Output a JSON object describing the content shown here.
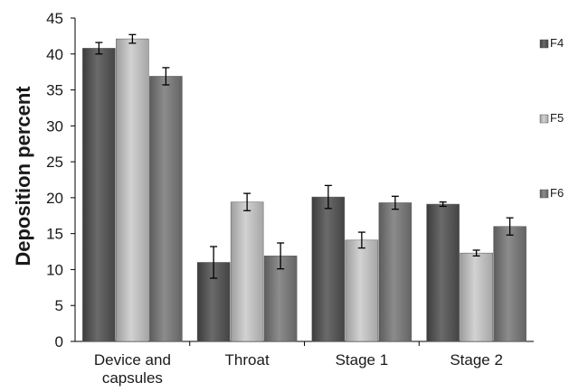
{
  "chart_data": {
    "type": "bar",
    "title": "",
    "xlabel": "",
    "ylabel": "Deposition percent",
    "ylim": [
      0,
      45
    ],
    "yticks": [
      0,
      5,
      10,
      15,
      20,
      25,
      30,
      35,
      40,
      45
    ],
    "categories": [
      [
        "Device and",
        "capsules"
      ],
      [
        "Throat"
      ],
      [
        "Stage 1"
      ],
      [
        "Stage 2"
      ]
    ],
    "series": [
      {
        "name": "F4",
        "values": [
          40.8,
          11.0,
          20.1,
          19.1
        ],
        "errors": [
          0.8,
          2.2,
          1.6,
          0.3
        ],
        "color": "#5b5b5b"
      },
      {
        "name": "F5",
        "values": [
          42.1,
          19.4,
          14.1,
          12.3
        ],
        "errors": [
          0.6,
          1.2,
          1.1,
          0.4
        ],
        "color": "#b9b9b9"
      },
      {
        "name": "F6",
        "values": [
          36.9,
          11.9,
          19.3,
          16.0
        ],
        "errors": [
          1.2,
          1.8,
          0.9,
          1.2
        ],
        "color": "#7b7b7b"
      }
    ],
    "legend": "right",
    "grid": false
  }
}
